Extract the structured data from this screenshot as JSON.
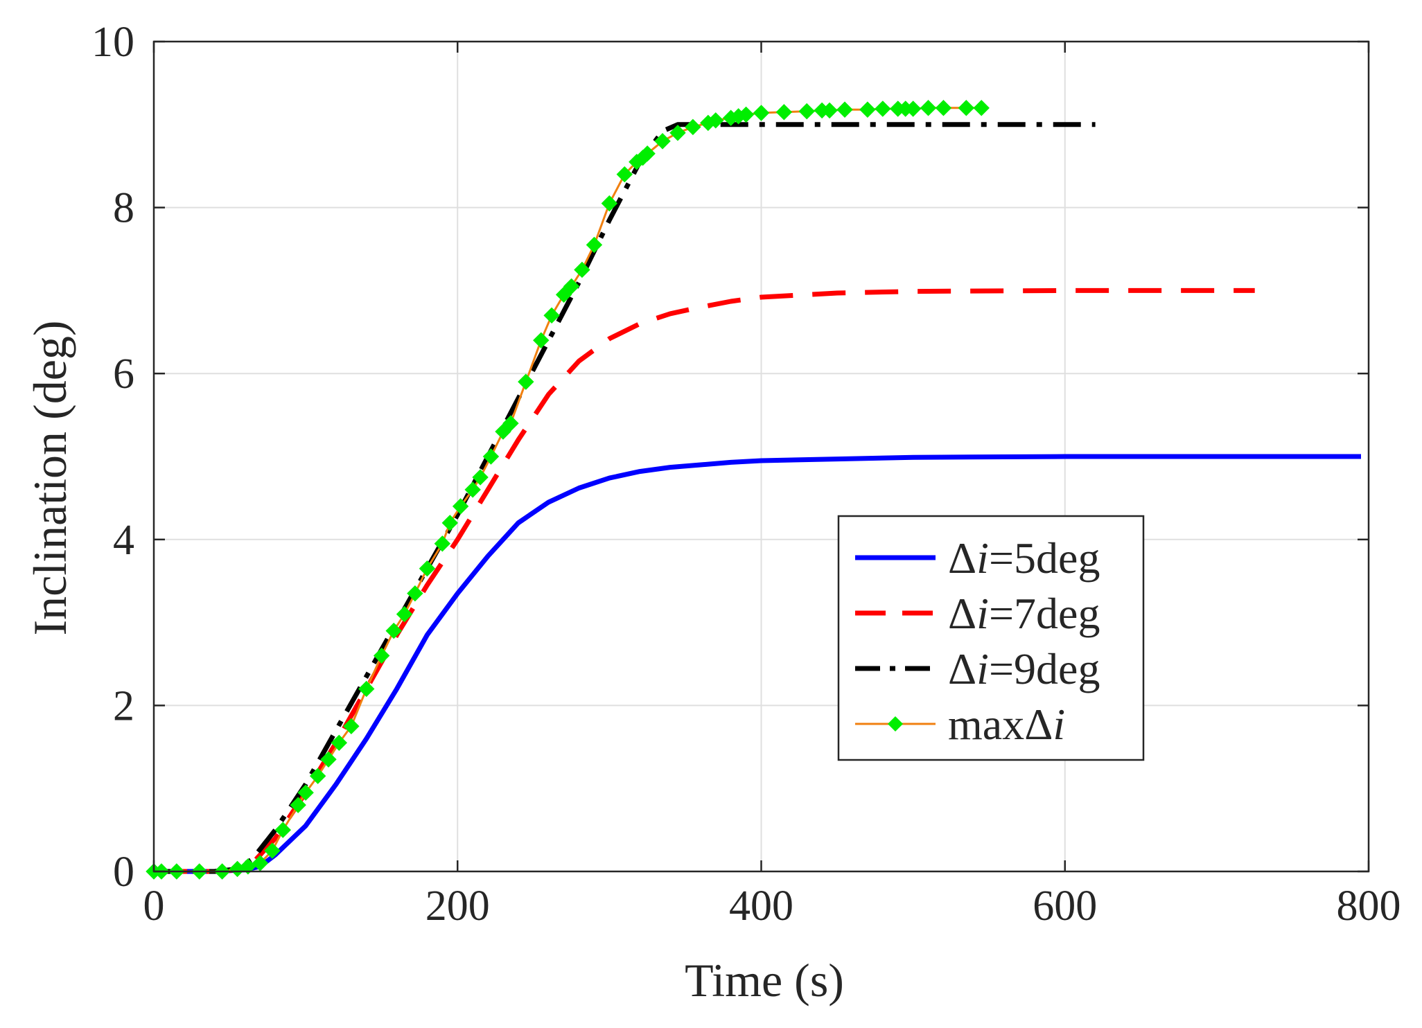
{
  "chart_data": {
    "type": "line",
    "title": "",
    "xlabel": "Time (s)",
    "ylabel": "Inclination (deg)",
    "xlim": [
      0,
      800
    ],
    "ylim": [
      0,
      10
    ],
    "xticks": [
      "0",
      "200",
      "400",
      "600",
      "800"
    ],
    "yticks": [
      "0",
      "2",
      "4",
      "6",
      "8",
      "10"
    ],
    "grid": true,
    "legend_position": "center-right",
    "series": [
      {
        "name_prefix": "Δ",
        "name_var": "i",
        "name_suffix": "=5deg",
        "color": "#0000ff",
        "style": "solid",
        "x": [
          0,
          40,
          60,
          70,
          80,
          100,
          120,
          140,
          160,
          180,
          200,
          220,
          240,
          260,
          280,
          300,
          320,
          340,
          360,
          380,
          400,
          450,
          500,
          600,
          700,
          795
        ],
        "y": [
          0,
          0,
          0.02,
          0.06,
          0.2,
          0.55,
          1.05,
          1.6,
          2.2,
          2.85,
          3.35,
          3.8,
          4.2,
          4.45,
          4.62,
          4.74,
          4.82,
          4.87,
          4.9,
          4.93,
          4.95,
          4.97,
          4.99,
          5.0,
          5.0,
          5.0
        ]
      },
      {
        "name_prefix": "Δ",
        "name_var": "i",
        "name_suffix": "=7deg",
        "color": "#ff0000",
        "style": "dashed",
        "x": [
          0,
          40,
          55,
          65,
          80,
          100,
          120,
          140,
          160,
          180,
          200,
          220,
          240,
          260,
          280,
          300,
          320,
          340,
          360,
          380,
          400,
          450,
          500,
          600,
          725
        ],
        "y": [
          0,
          0,
          0.02,
          0.1,
          0.4,
          0.95,
          1.55,
          2.2,
          2.85,
          3.45,
          4.0,
          4.6,
          5.2,
          5.75,
          6.15,
          6.42,
          6.6,
          6.72,
          6.8,
          6.87,
          6.92,
          6.97,
          6.99,
          7.0,
          7.0
        ]
      },
      {
        "name_prefix": "Δ",
        "name_var": "i",
        "name_suffix": "=9deg",
        "color": "#000000",
        "style": "dashdot",
        "x": [
          0,
          40,
          55,
          65,
          80,
          100,
          120,
          140,
          160,
          180,
          200,
          220,
          240,
          260,
          280,
          300,
          320,
          335,
          345,
          360,
          400,
          500,
          620
        ],
        "y": [
          0,
          0,
          0.03,
          0.15,
          0.5,
          1.05,
          1.7,
          2.35,
          3.0,
          3.65,
          4.3,
          5.0,
          5.7,
          6.4,
          7.1,
          7.85,
          8.55,
          8.92,
          9.0,
          9.0,
          9.0,
          9.0,
          9.0
        ]
      },
      {
        "name_prefix": "max",
        "name_prefix2": "Δ",
        "name_var": "i",
        "name_suffix": "",
        "color": "#f08010",
        "marker_color": "#00ee00",
        "style": "solid-diamond",
        "x": [
          0,
          5,
          15,
          30,
          45,
          55,
          62,
          70,
          78,
          85,
          95,
          100,
          108,
          115,
          122,
          130,
          140,
          150,
          158,
          165,
          172,
          180,
          190,
          195,
          202,
          210,
          215,
          222,
          230,
          235,
          245,
          255,
          262,
          270,
          275,
          282,
          290,
          300,
          310,
          318,
          322,
          325,
          335,
          345,
          355,
          365,
          370,
          380,
          385,
          390,
          400,
          415,
          430,
          440,
          445,
          455,
          470,
          480,
          490,
          495,
          500,
          510,
          520,
          535,
          545
        ],
        "y": [
          0,
          0,
          0,
          0,
          0,
          0.03,
          0.06,
          0.1,
          0.25,
          0.5,
          0.8,
          0.95,
          1.15,
          1.35,
          1.55,
          1.75,
          2.2,
          2.6,
          2.9,
          3.1,
          3.35,
          3.65,
          3.95,
          4.2,
          4.4,
          4.6,
          4.75,
          5.0,
          5.3,
          5.4,
          5.9,
          6.4,
          6.7,
          6.95,
          7.05,
          7.25,
          7.55,
          8.05,
          8.4,
          8.55,
          8.6,
          8.65,
          8.8,
          8.9,
          8.97,
          9.02,
          9.05,
          9.08,
          9.1,
          9.12,
          9.14,
          9.15,
          9.16,
          9.17,
          9.17,
          9.18,
          9.18,
          9.19,
          9.19,
          9.19,
          9.19,
          9.2,
          9.2,
          9.2,
          9.2
        ]
      }
    ]
  }
}
